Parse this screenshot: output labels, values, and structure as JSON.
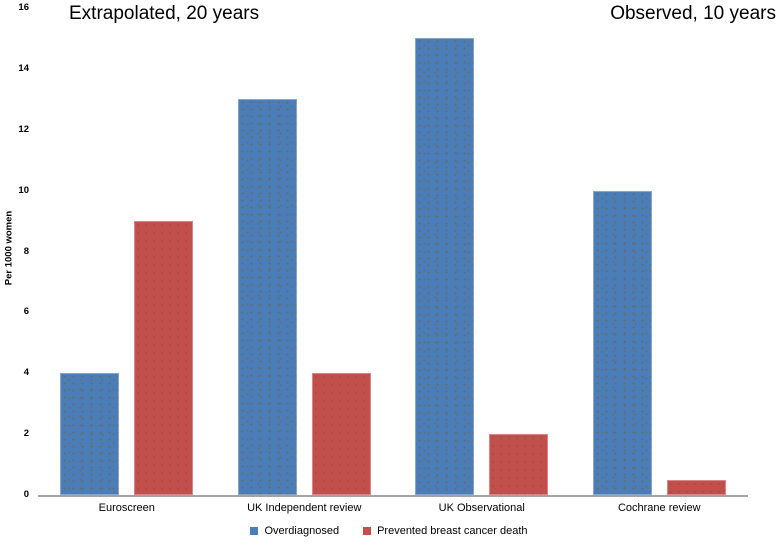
{
  "chart_data": {
    "type": "bar",
    "annotation_left": "Extrapolated, 20 years",
    "annotation_right": "Observed, 10 years",
    "ylabel": "Per 1000 women",
    "ylim": [
      0,
      16
    ],
    "yticks": [
      0,
      2,
      4,
      6,
      8,
      10,
      12,
      14,
      16
    ],
    "categories": [
      "Euroscreen",
      "UK Independent review",
      "UK Observational",
      "Cochrane review"
    ],
    "series": [
      {
        "name": "Overdiagnosed",
        "color": "#4b7db9",
        "values": [
          4,
          13,
          15,
          10
        ]
      },
      {
        "name": "Prevented breast cancer death",
        "color": "#c1504c",
        "values": [
          9,
          4,
          2,
          0.5
        ]
      }
    ],
    "grid": false,
    "legend_position": "bottom",
    "axis_line_color": "#a3a3a3"
  }
}
